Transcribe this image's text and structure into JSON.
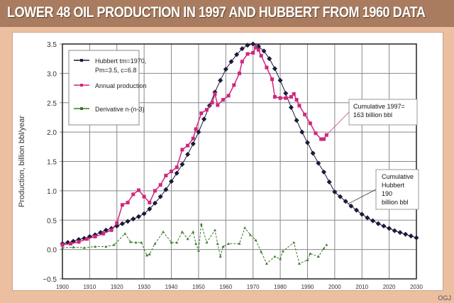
{
  "title": "Lower 48 oil production in 1997 and Hubbert from 1960 data",
  "credit": "OGJ",
  "chart_data": {
    "type": "line",
    "title": "Lower 48 oil production in 1997 and Hubbert from 1960 data",
    "xlabel": "",
    "ylabel": "Production, billion bbl/year",
    "xlim": [
      1900,
      2030
    ],
    "ylim": [
      -0.5,
      3.5
    ],
    "xticks": [
      1900,
      1910,
      1920,
      1930,
      1940,
      1950,
      1960,
      1970,
      1980,
      1990,
      2000,
      2010,
      2020,
      2030
    ],
    "yticks": [
      "-0.5",
      "0.0",
      "0.5",
      "1.0",
      "1.5",
      "2.0",
      "2.5",
      "3.0",
      "3.5"
    ],
    "grid": true,
    "legend_position": "top-left",
    "series": [
      {
        "name": "Hubbert tm=1970, Pm=3.5, c=6.8",
        "legend_lines": [
          "Hubbert tm=1970,",
          "Pm=3.5, c=6.8"
        ],
        "color": "#1a1a3a",
        "marker": "diamond",
        "x": [
          1900,
          1902,
          1904,
          1906,
          1908,
          1910,
          1912,
          1914,
          1916,
          1918,
          1920,
          1922,
          1924,
          1926,
          1928,
          1930,
          1932,
          1934,
          1936,
          1938,
          1940,
          1942,
          1944,
          1946,
          1948,
          1950,
          1952,
          1954,
          1956,
          1958,
          1960,
          1962,
          1964,
          1966,
          1968,
          1970,
          1972,
          1974,
          1976,
          1978,
          1980,
          1982,
          1984,
          1986,
          1988,
          1990,
          1992,
          1994,
          1996,
          1998,
          2000,
          2002,
          2004,
          2006,
          2008,
          2010,
          2012,
          2014,
          2016,
          2018,
          2020,
          2022,
          2024,
          2026,
          2028,
          2030
        ],
        "y": [
          0.1,
          0.12,
          0.14,
          0.17,
          0.19,
          0.22,
          0.25,
          0.29,
          0.33,
          0.36,
          0.4,
          0.44,
          0.48,
          0.52,
          0.56,
          0.61,
          0.69,
          0.79,
          0.9,
          1.02,
          1.16,
          1.3,
          1.45,
          1.62,
          1.8,
          2.0,
          2.22,
          2.45,
          2.68,
          2.88,
          3.07,
          3.2,
          3.32,
          3.42,
          3.48,
          3.5,
          3.46,
          3.38,
          3.25,
          3.08,
          2.88,
          2.66,
          2.42,
          2.2,
          2.0,
          1.82,
          1.64,
          1.47,
          1.32,
          1.15,
          0.98,
          0.9,
          0.82,
          0.74,
          0.67,
          0.6,
          0.54,
          0.49,
          0.44,
          0.4,
          0.36,
          0.32,
          0.29,
          0.26,
          0.23,
          0.2
        ]
      },
      {
        "name": "Annual production",
        "color": "#d0267e",
        "marker": "square",
        "x": [
          1900,
          1903,
          1906,
          1909,
          1912,
          1915,
          1918,
          1920,
          1922,
          1924,
          1926,
          1928,
          1930,
          1932,
          1934,
          1936,
          1938,
          1940,
          1942,
          1944,
          1946,
          1948,
          1949,
          1951,
          1953,
          1955,
          1956,
          1957,
          1959,
          1961,
          1963,
          1965,
          1966,
          1968,
          1970,
          1971,
          1972,
          1973,
          1975,
          1977,
          1978,
          1980,
          1982,
          1984,
          1985,
          1986,
          1987,
          1989,
          1991,
          1993,
          1995,
          1996,
          1997
        ],
        "y": [
          0.08,
          0.1,
          0.13,
          0.18,
          0.22,
          0.27,
          0.33,
          0.45,
          0.76,
          0.8,
          0.94,
          1.01,
          0.9,
          0.8,
          1.0,
          1.1,
          1.26,
          1.33,
          1.4,
          1.7,
          1.77,
          1.89,
          2.05,
          2.32,
          2.38,
          2.5,
          2.65,
          2.46,
          2.55,
          2.62,
          2.8,
          3.0,
          3.2,
          3.33,
          3.35,
          3.44,
          3.4,
          3.3,
          3.1,
          2.9,
          2.6,
          2.58,
          2.58,
          2.6,
          2.65,
          2.55,
          2.45,
          2.3,
          2.15,
          1.98,
          1.88,
          1.88,
          1.95
        ]
      },
      {
        "name": "Derivative n-(n-3)",
        "color": "#3a7a2a",
        "marker": "triangle",
        "x": [
          1900,
          1904,
          1908,
          1912,
          1916,
          1919,
          1923,
          1925,
          1927,
          1929,
          1931,
          1932,
          1934,
          1937,
          1940,
          1942,
          1944,
          1946,
          1948,
          1949,
          1950,
          1951,
          1953,
          1956,
          1957,
          1958,
          1959,
          1961,
          1965,
          1967,
          1969,
          1971,
          1973,
          1975,
          1978,
          1980,
          1981,
          1985,
          1987,
          1990,
          1991,
          1994,
          1996,
          1997
        ],
        "y": [
          0.03,
          0.04,
          0.03,
          0.05,
          0.05,
          0.08,
          0.27,
          0.13,
          0.12,
          0.12,
          -0.1,
          -0.08,
          0.1,
          0.3,
          0.12,
          0.12,
          0.3,
          0.18,
          0.3,
          0.1,
          -0.02,
          0.43,
          0.12,
          0.33,
          0.1,
          -0.12,
          0.05,
          0.1,
          0.1,
          0.37,
          0.25,
          0.16,
          -0.04,
          -0.24,
          -0.12,
          -0.16,
          -0.03,
          0.12,
          -0.24,
          -0.18,
          -0.07,
          -0.12,
          0.02,
          0.08
        ]
      }
    ],
    "annotations": [
      {
        "lines": [
          "Cumulative 1997=",
          "163 billion bbl"
        ],
        "points_to": [
          1997,
          1.95
        ]
      },
      {
        "lines": [
          "Cumulative",
          "Hubbert",
          "190",
          "billion bbl"
        ],
        "points_to": [
          2005,
          0.78
        ]
      }
    ]
  }
}
